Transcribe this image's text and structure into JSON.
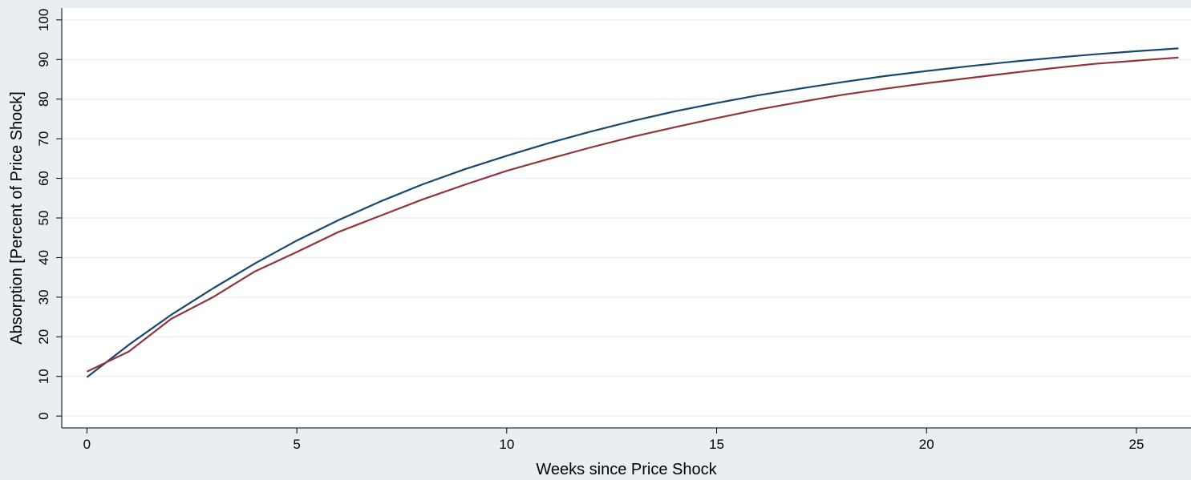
{
  "chart_data": {
    "type": "line",
    "title": "",
    "xlabel": "Weeks since Price Shock",
    "ylabel": "Absorption [Percent of Price Shock]",
    "xlim": [
      -0.6,
      26.3
    ],
    "ylim": [
      -3,
      103
    ],
    "xticks": [
      0,
      5,
      10,
      15,
      20,
      25
    ],
    "yticks": [
      0,
      10,
      20,
      30,
      40,
      50,
      60,
      70,
      80,
      90,
      100
    ],
    "grid": true,
    "legend": "none",
    "colors": {
      "plot_background": "#ffffff",
      "outer_background": "#e8eef2",
      "gridline": "#e8eef2"
    },
    "series": [
      {
        "color": "#1a476f",
        "x": [
          0,
          1,
          2,
          3,
          4,
          5,
          6,
          7,
          8,
          9,
          10,
          11,
          12,
          13,
          14,
          15,
          16,
          17,
          18,
          19,
          20,
          21,
          22,
          23,
          24,
          25,
          26
        ],
        "y": [
          9.8,
          18.0,
          25.5,
          32.2,
          38.5,
          44.3,
          49.5,
          54.2,
          58.5,
          62.3,
          65.7,
          68.9,
          71.8,
          74.5,
          76.9,
          79.0,
          81.0,
          82.7,
          84.3,
          85.8,
          87.1,
          88.3,
          89.4,
          90.4,
          91.3,
          92.1,
          92.8
        ]
      },
      {
        "color": "#90353b",
        "x": [
          0,
          1,
          2,
          3,
          4,
          5,
          6,
          7,
          8,
          9,
          10,
          11,
          12,
          13,
          14,
          15,
          16,
          17,
          18,
          19,
          20,
          21,
          22,
          23,
          24,
          25,
          26
        ],
        "y": [
          11.2,
          16.3,
          24.5,
          30.0,
          36.5,
          41.4,
          46.5,
          50.6,
          54.7,
          58.4,
          61.9,
          64.9,
          67.8,
          70.5,
          72.9,
          75.2,
          77.4,
          79.3,
          81.1,
          82.6,
          84.0,
          85.3,
          86.6,
          87.8,
          88.9,
          89.7,
          90.5
        ]
      }
    ]
  }
}
